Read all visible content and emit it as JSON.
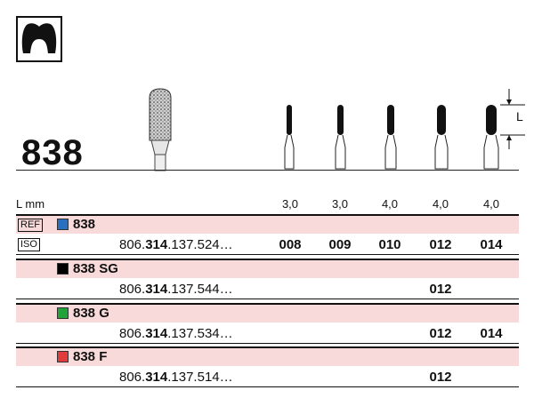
{
  "product": {
    "code": "838",
    "icon": "tooth-crown-icon"
  },
  "table": {
    "length_header": "L mm",
    "length_values": [
      "3,0",
      "3,0",
      "4,0",
      "4,0",
      "4,0"
    ],
    "dimension_label": "L",
    "rows": [
      {
        "tag": "REF",
        "label": "838",
        "color": "#2a6fc0",
        "order_prefix": "806.",
        "order_bold": "314",
        "order_suffix": ".137.524…",
        "sizes": [
          "008",
          "009",
          "010",
          "012",
          "014"
        ],
        "tag2": "ISO"
      },
      {
        "label": "838 SG",
        "color": "#000000",
        "order_prefix": "806.",
        "order_bold": "314",
        "order_suffix": ".137.544…",
        "sizes": [
          "",
          "",
          "",
          "012",
          ""
        ]
      },
      {
        "label": "838 G",
        "color": "#21a33a",
        "order_prefix": "806.",
        "order_bold": "314",
        "order_suffix": ".137.534…",
        "sizes": [
          "",
          "",
          "",
          "012",
          "014"
        ]
      },
      {
        "label": "838 F",
        "color": "#e23b3b",
        "order_prefix": "806.",
        "order_bold": "314",
        "order_suffix": ".137.514…",
        "sizes": [
          "",
          "",
          "",
          "012",
          ""
        ]
      }
    ]
  }
}
